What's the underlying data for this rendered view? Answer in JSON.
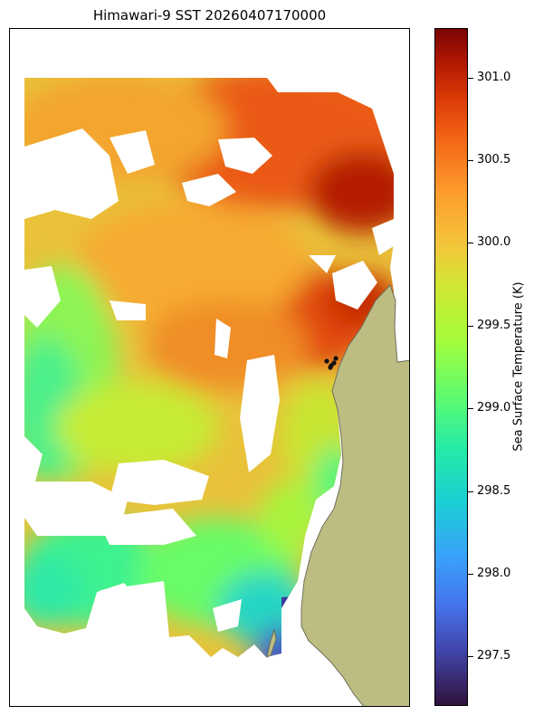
{
  "title": "Himawari-9 SST 20260407170000",
  "colorbar": {
    "label": "Sea Surface Temperature (K)",
    "ticks": [
      "297.5",
      "298.0",
      "298.5",
      "299.0",
      "299.5",
      "300.0",
      "300.5",
      "301.0"
    ],
    "range": [
      297.2,
      301.3
    ],
    "colormap": "turbo"
  },
  "colors": {
    "land": "#bdbd83",
    "coast": "#6e6e5a",
    "no_data": "#ffffff",
    "markers": "#111111"
  },
  "markers": {
    "count": 5,
    "shape": "dot"
  }
}
